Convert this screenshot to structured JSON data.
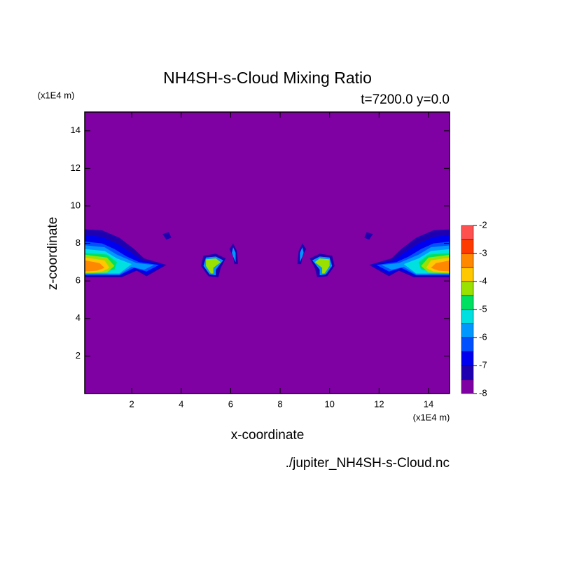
{
  "chart_data": {
    "type": "contour",
    "title": "NH4SH-s-Cloud Mixing Ratio",
    "subtitle": "t=7200.0 y=0.0",
    "x_label": "x-coordinate",
    "y_label": "z-coordinate",
    "x_unit": "(x1E4 m)",
    "y_unit": "(x1E4 m)",
    "footer": "./jupiter_NH4SH-s-Cloud.nc",
    "xlim": [
      0.1,
      14.85
    ],
    "ylim": [
      0,
      15
    ],
    "xticks": [
      2,
      4,
      6,
      8,
      10,
      12,
      14
    ],
    "yticks": [
      2,
      4,
      6,
      8,
      10,
      12,
      14
    ],
    "levels": [
      -8,
      -7.5,
      -7,
      -6.5,
      -6,
      -5.5,
      -5,
      -4.5,
      -4,
      -3.5,
      -3,
      -2.5,
      -2
    ],
    "colors": [
      "#7f00a3",
      "#1f00b0",
      "#0000f0",
      "#0050ff",
      "#0098ff",
      "#00e0e0",
      "#00e060",
      "#9ae000",
      "#ffc800",
      "#ff8800",
      "#ff3a00",
      "#ff5050",
      "#ffb0b0"
    ],
    "colorbar_ticks": [
      -2,
      -3,
      -4,
      -5,
      -6,
      -7,
      -8
    ],
    "regions": [
      {
        "level": -7.5,
        "points": [
          [
            0.1,
            8.75
          ],
          [
            0.8,
            8.7
          ],
          [
            1.5,
            8.3
          ],
          [
            2.1,
            7.7
          ],
          [
            2.5,
            7.2
          ],
          [
            3.4,
            6.85
          ],
          [
            2.6,
            6.25
          ],
          [
            2.2,
            6.55
          ],
          [
            1.6,
            6.2
          ],
          [
            0.1,
            6.2
          ]
        ]
      },
      {
        "level": -7,
        "points": [
          [
            0.1,
            8.45
          ],
          [
            0.8,
            8.35
          ],
          [
            1.4,
            8.0
          ],
          [
            2.0,
            7.5
          ],
          [
            2.4,
            7.1
          ],
          [
            3.3,
            6.85
          ],
          [
            2.6,
            6.35
          ],
          [
            2.2,
            6.6
          ],
          [
            1.6,
            6.3
          ],
          [
            0.1,
            6.3
          ]
        ]
      },
      {
        "level": -6.5,
        "points": [
          [
            0.1,
            8.1
          ],
          [
            0.8,
            8.0
          ],
          [
            1.3,
            7.7
          ],
          [
            1.8,
            7.3
          ],
          [
            2.3,
            7.0
          ],
          [
            3.1,
            6.85
          ],
          [
            2.6,
            6.5
          ],
          [
            2.1,
            6.7
          ],
          [
            1.5,
            6.3
          ],
          [
            0.1,
            6.3
          ]
        ]
      },
      {
        "level": -6,
        "points": [
          [
            0.1,
            7.9
          ],
          [
            0.9,
            7.8
          ],
          [
            1.4,
            7.4
          ],
          [
            2.2,
            6.95
          ],
          [
            2.9,
            6.85
          ],
          [
            2.5,
            6.6
          ],
          [
            2.0,
            6.75
          ],
          [
            1.5,
            6.35
          ],
          [
            0.1,
            6.35
          ]
        ]
      },
      {
        "level": -5.5,
        "points": [
          [
            0.1,
            7.7
          ],
          [
            0.9,
            7.6
          ],
          [
            1.4,
            7.2
          ],
          [
            2.0,
            6.9
          ],
          [
            1.5,
            6.4
          ],
          [
            0.1,
            6.4
          ]
        ]
      },
      {
        "level": -5,
        "points": [
          [
            0.1,
            7.5
          ],
          [
            1.0,
            7.4
          ],
          [
            1.4,
            7.0
          ],
          [
            1.3,
            6.6
          ],
          [
            0.1,
            6.4
          ]
        ]
      },
      {
        "level": -4.5,
        "points": [
          [
            0.1,
            7.4
          ],
          [
            1.0,
            7.25
          ],
          [
            1.3,
            6.8
          ],
          [
            1.0,
            6.45
          ],
          [
            0.1,
            6.4
          ]
        ]
      },
      {
        "level": -4,
        "points": [
          [
            0.1,
            7.25
          ],
          [
            0.9,
            7.1
          ],
          [
            1.1,
            6.7
          ],
          [
            0.8,
            6.5
          ],
          [
            0.1,
            6.45
          ]
        ]
      },
      {
        "level": -3.5,
        "points": [
          [
            0.1,
            7.1
          ],
          [
            0.7,
            6.95
          ],
          [
            0.9,
            6.7
          ],
          [
            0.6,
            6.55
          ],
          [
            0.1,
            6.5
          ]
        ]
      },
      {
        "level": -7.5,
        "points": [
          [
            3.25,
            8.5
          ],
          [
            3.5,
            8.6
          ],
          [
            3.6,
            8.3
          ],
          [
            3.4,
            8.2
          ]
        ]
      },
      {
        "level": -7.5,
        "points": [
          [
            4.9,
            7.35
          ],
          [
            5.4,
            7.45
          ],
          [
            5.8,
            7.2
          ],
          [
            5.6,
            6.7
          ],
          [
            5.5,
            6.2
          ],
          [
            5.1,
            6.25
          ],
          [
            4.8,
            6.8
          ]
        ]
      },
      {
        "level": -6,
        "points": [
          [
            5.0,
            7.25
          ],
          [
            5.4,
            7.3
          ],
          [
            5.7,
            7.1
          ],
          [
            5.4,
            6.6
          ],
          [
            5.4,
            6.3
          ],
          [
            5.15,
            6.35
          ],
          [
            4.9,
            6.8
          ]
        ]
      },
      {
        "level": -4.5,
        "points": [
          [
            5.0,
            7.15
          ],
          [
            5.4,
            7.2
          ],
          [
            5.6,
            7.0
          ],
          [
            5.3,
            6.7
          ],
          [
            5.3,
            6.4
          ],
          [
            5.2,
            6.4
          ],
          [
            5.0,
            6.8
          ]
        ]
      },
      {
        "level": -7.5,
        "points": [
          [
            5.95,
            7.7
          ],
          [
            6.1,
            8.0
          ],
          [
            6.25,
            7.6
          ],
          [
            6.3,
            6.9
          ],
          [
            6.15,
            6.9
          ],
          [
            6.1,
            7.3
          ]
        ]
      },
      {
        "level": -6,
        "points": [
          [
            6.05,
            7.5
          ],
          [
            6.1,
            7.8
          ],
          [
            6.2,
            7.5
          ],
          [
            6.2,
            7.0
          ],
          [
            6.1,
            7.3
          ]
        ]
      },
      {
        "level": -7.5,
        "points": [
          [
            14.9,
            8.75
          ],
          [
            14.2,
            8.7
          ],
          [
            13.5,
            8.3
          ],
          [
            12.9,
            7.7
          ],
          [
            12.5,
            7.2
          ],
          [
            11.6,
            6.85
          ],
          [
            12.4,
            6.25
          ],
          [
            12.8,
            6.55
          ],
          [
            13.4,
            6.2
          ],
          [
            14.9,
            6.2
          ]
        ]
      },
      {
        "level": -7,
        "points": [
          [
            14.9,
            8.45
          ],
          [
            14.2,
            8.35
          ],
          [
            13.6,
            8.0
          ],
          [
            13.0,
            7.5
          ],
          [
            12.6,
            7.1
          ],
          [
            11.7,
            6.85
          ],
          [
            12.4,
            6.35
          ],
          [
            12.8,
            6.6
          ],
          [
            13.4,
            6.3
          ],
          [
            14.9,
            6.3
          ]
        ]
      },
      {
        "level": -6.5,
        "points": [
          [
            14.9,
            8.1
          ],
          [
            14.2,
            8.0
          ],
          [
            13.7,
            7.7
          ],
          [
            13.2,
            7.3
          ],
          [
            12.7,
            7.0
          ],
          [
            11.9,
            6.85
          ],
          [
            12.4,
            6.5
          ],
          [
            12.9,
            6.7
          ],
          [
            13.5,
            6.3
          ],
          [
            14.9,
            6.3
          ]
        ]
      },
      {
        "level": -6,
        "points": [
          [
            14.9,
            7.9
          ],
          [
            14.1,
            7.8
          ],
          [
            13.6,
            7.4
          ],
          [
            12.8,
            6.95
          ],
          [
            12.1,
            6.85
          ],
          [
            12.5,
            6.6
          ],
          [
            13.0,
            6.75
          ],
          [
            13.5,
            6.35
          ],
          [
            14.9,
            6.35
          ]
        ]
      },
      {
        "level": -5.5,
        "points": [
          [
            14.9,
            7.7
          ],
          [
            14.1,
            7.6
          ],
          [
            13.6,
            7.2
          ],
          [
            13.0,
            6.9
          ],
          [
            13.5,
            6.4
          ],
          [
            14.9,
            6.4
          ]
        ]
      },
      {
        "level": -5,
        "points": [
          [
            14.9,
            7.5
          ],
          [
            14.0,
            7.4
          ],
          [
            13.6,
            7.0
          ],
          [
            13.7,
            6.6
          ],
          [
            14.9,
            6.4
          ]
        ]
      },
      {
        "level": -4.5,
        "points": [
          [
            14.9,
            7.4
          ],
          [
            14.0,
            7.25
          ],
          [
            13.7,
            6.8
          ],
          [
            14.0,
            6.45
          ],
          [
            14.9,
            6.4
          ]
        ]
      },
      {
        "level": -4,
        "points": [
          [
            14.9,
            7.25
          ],
          [
            14.1,
            7.1
          ],
          [
            13.9,
            6.7
          ],
          [
            14.2,
            6.5
          ],
          [
            14.9,
            6.45
          ]
        ]
      },
      {
        "level": -3.5,
        "points": [
          [
            14.9,
            7.1
          ],
          [
            14.3,
            6.95
          ],
          [
            14.1,
            6.7
          ],
          [
            14.4,
            6.55
          ],
          [
            14.9,
            6.5
          ]
        ]
      },
      {
        "level": -7.5,
        "points": [
          [
            11.75,
            8.5
          ],
          [
            11.5,
            8.6
          ],
          [
            11.4,
            8.3
          ],
          [
            11.6,
            8.2
          ]
        ]
      },
      {
        "level": -7.5,
        "points": [
          [
            10.1,
            7.35
          ],
          [
            9.6,
            7.45
          ],
          [
            9.2,
            7.2
          ],
          [
            9.4,
            6.7
          ],
          [
            9.5,
            6.2
          ],
          [
            9.9,
            6.25
          ],
          [
            10.2,
            6.8
          ]
        ]
      },
      {
        "level": -6,
        "points": [
          [
            10.0,
            7.25
          ],
          [
            9.6,
            7.3
          ],
          [
            9.3,
            7.1
          ],
          [
            9.6,
            6.6
          ],
          [
            9.6,
            6.3
          ],
          [
            9.85,
            6.35
          ],
          [
            10.1,
            6.8
          ]
        ]
      },
      {
        "level": -4.5,
        "points": [
          [
            10.0,
            7.15
          ],
          [
            9.6,
            7.2
          ],
          [
            9.4,
            7.0
          ],
          [
            9.7,
            6.7
          ],
          [
            9.7,
            6.4
          ],
          [
            9.8,
            6.4
          ],
          [
            10.0,
            6.8
          ]
        ]
      },
      {
        "level": -7.5,
        "points": [
          [
            9.05,
            7.7
          ],
          [
            8.9,
            8.0
          ],
          [
            8.75,
            7.6
          ],
          [
            8.7,
            6.9
          ],
          [
            8.85,
            6.9
          ],
          [
            8.9,
            7.3
          ]
        ]
      },
      {
        "level": -6,
        "points": [
          [
            8.95,
            7.5
          ],
          [
            8.9,
            7.8
          ],
          [
            8.8,
            7.5
          ],
          [
            8.8,
            7.0
          ],
          [
            8.9,
            7.3
          ]
        ]
      }
    ]
  }
}
